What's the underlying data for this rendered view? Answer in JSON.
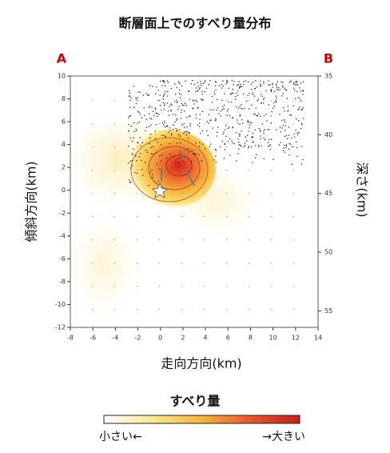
{
  "chart_data": {
    "type": "heatmap",
    "title": "断層面上でのすべり量分布",
    "corner_labels": [
      "A",
      "B"
    ],
    "x_label": "走向方向(km)",
    "y_label": "傾斜方向(km)",
    "y2_label": "深さ(km)",
    "xlim": [
      -8,
      14
    ],
    "xticks": [
      -8,
      -6,
      -4,
      -2,
      0,
      2,
      4,
      6,
      8,
      10,
      12,
      14
    ],
    "ylim": [
      -12,
      10
    ],
    "yticks": [
      -12,
      -10,
      -8,
      -6,
      -4,
      -2,
      0,
      2,
      4,
      6,
      8,
      10
    ],
    "y2lim": [
      35,
      56.4
    ],
    "y2ticks": [
      35,
      40,
      45,
      50,
      55
    ],
    "colorbar": {
      "title": "すべり量",
      "low_label": "小さい←",
      "high_label": "→大きい",
      "colors": [
        "#ffffff",
        "#fbe98a",
        "#f6b33c",
        "#e8542a",
        "#c91d1d"
      ]
    }
  }
}
